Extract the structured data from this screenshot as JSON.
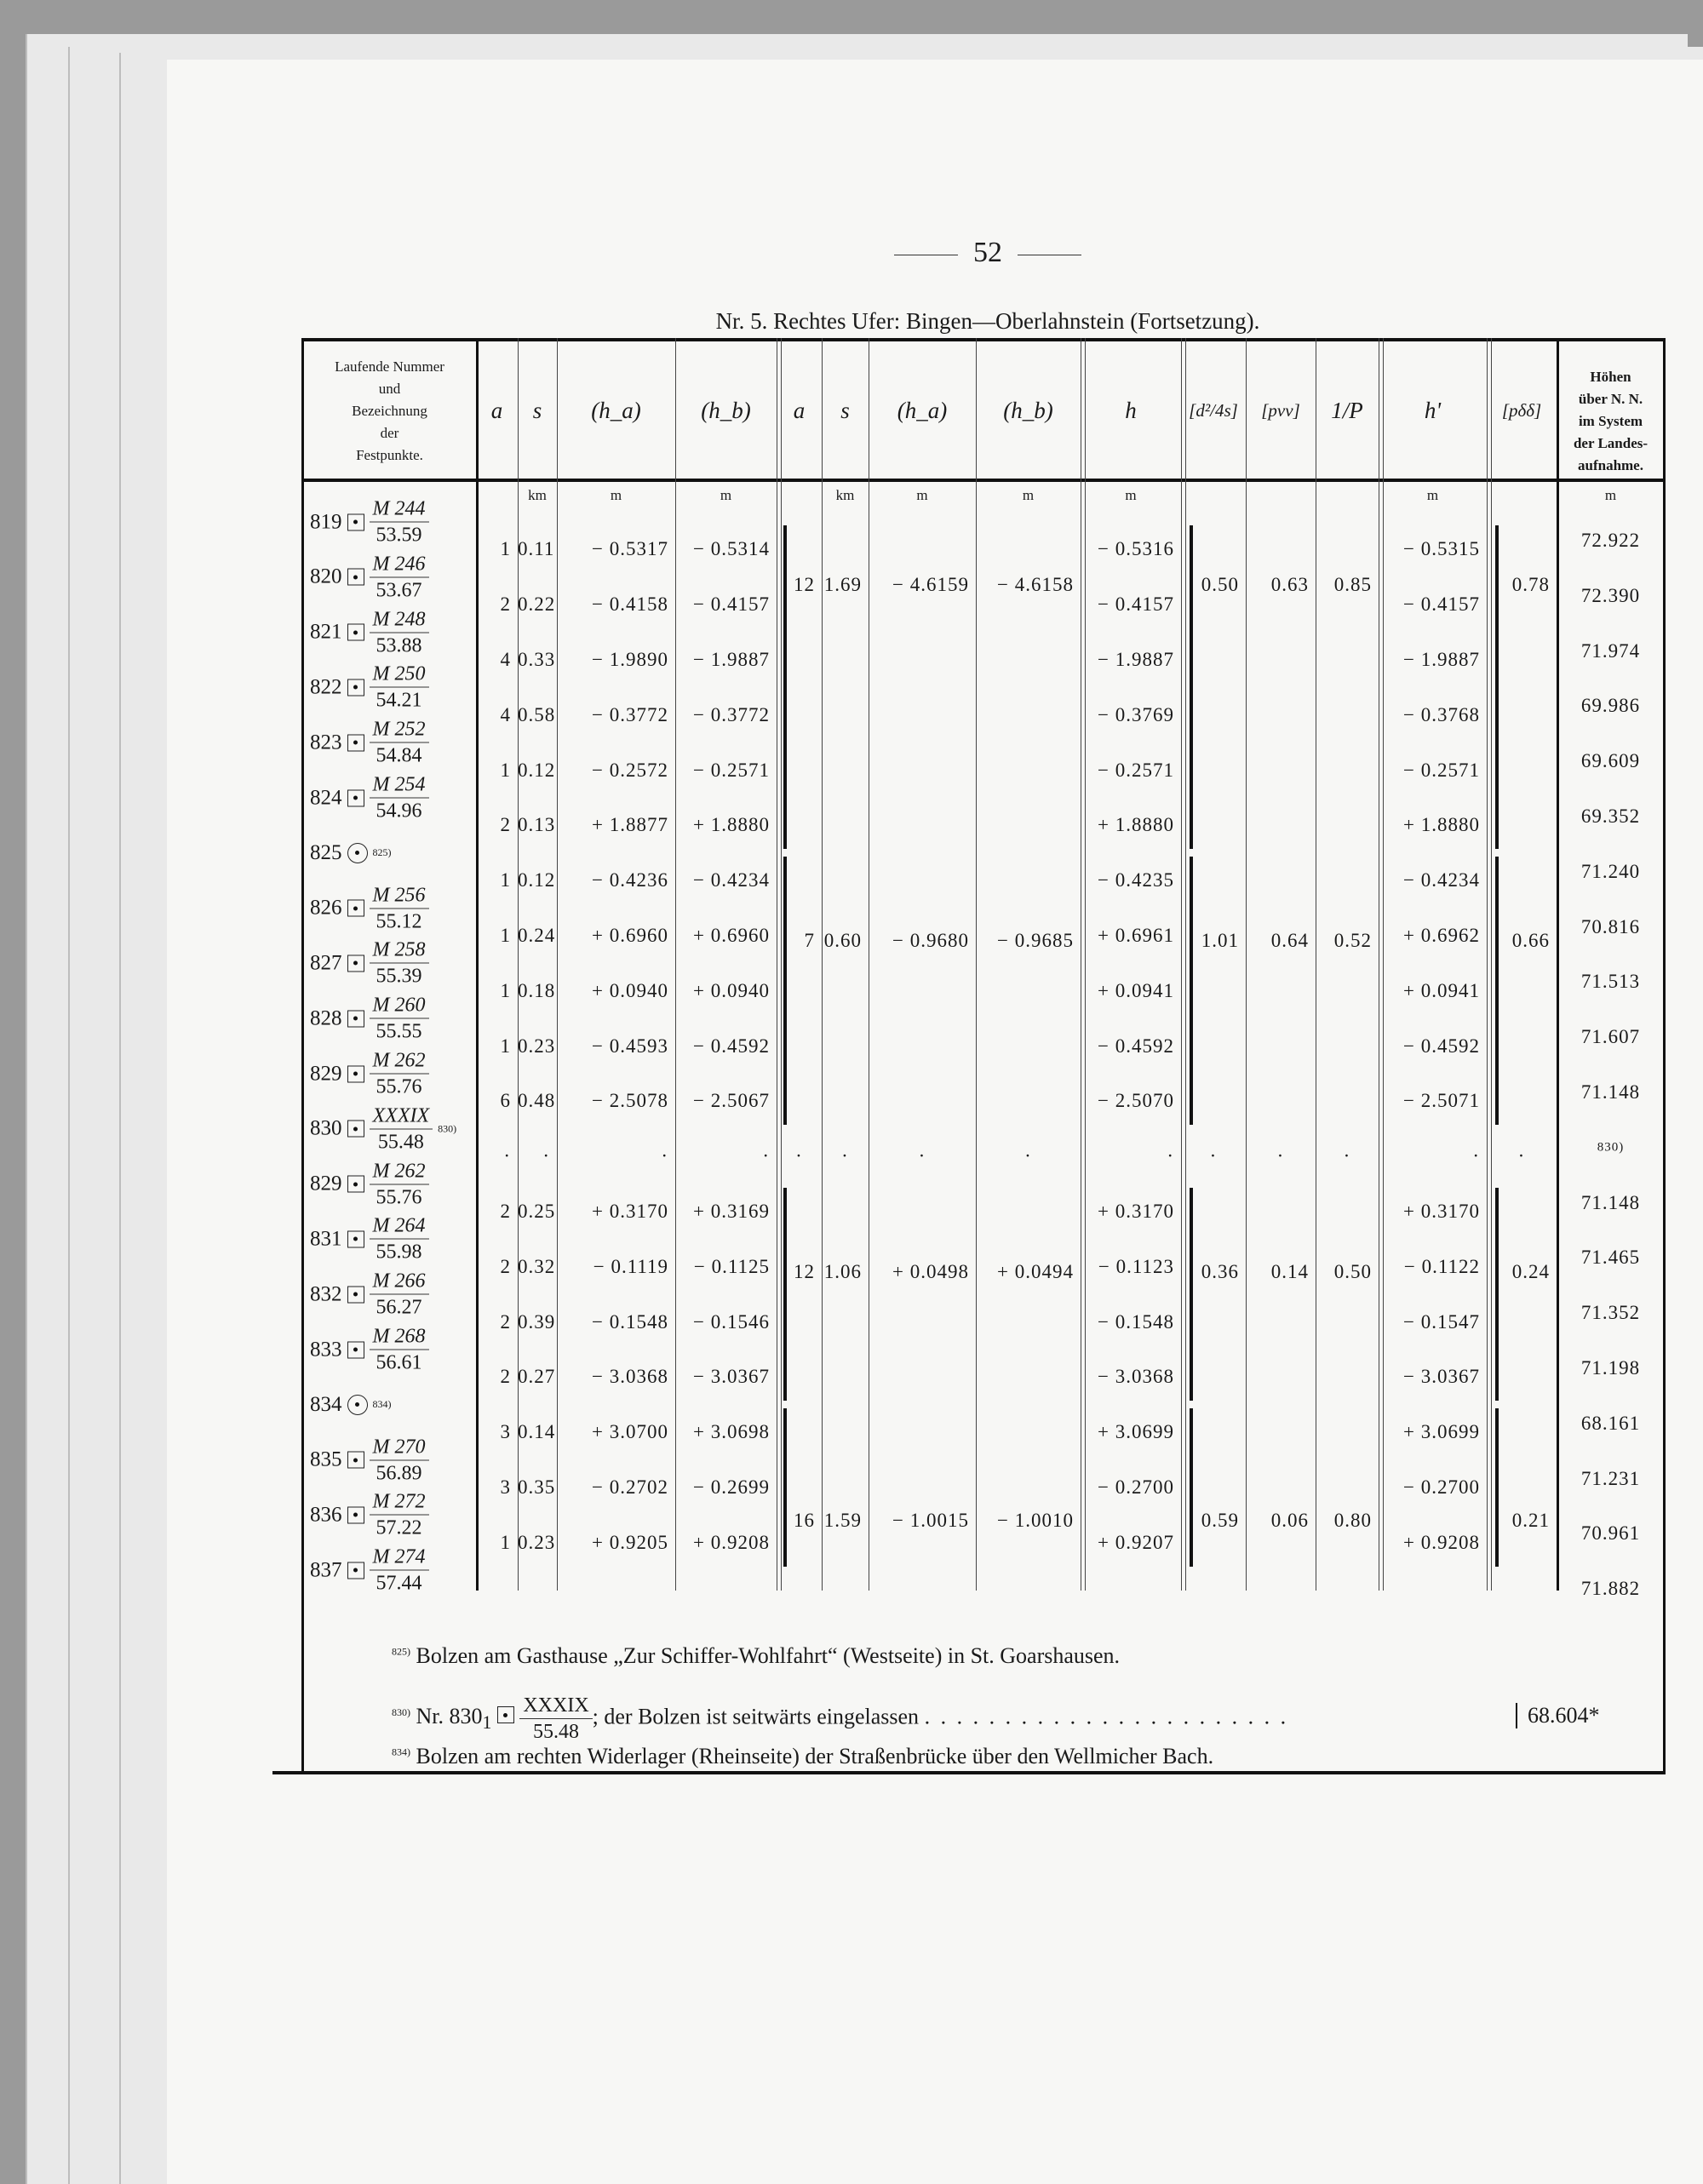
{
  "page_number": "52",
  "caption": "Nr. 5. Rechtes Ufer: Bingen—Oberlahnstein (Fortsetzung).",
  "headers": {
    "name": [
      "Laufende Nummer",
      "und",
      "Bezeichnung",
      "der",
      "Festpunkte."
    ],
    "cols": [
      "a",
      "s",
      "(h_a)",
      "(h_b)",
      "a",
      "s",
      "(h_a)",
      "(h_b)",
      "h",
      "[d²/4s]",
      "[pvv]",
      "1/P",
      "h'",
      "[pδδ]"
    ],
    "heights": [
      "Höhen",
      "über N. N.",
      "im System",
      "der Landes-",
      "aufnahme."
    ]
  },
  "units": {
    "km": "km",
    "m": "m"
  },
  "points": [
    {
      "no": "819",
      "mark": "box",
      "num": "M 244",
      "den": "53.59",
      "height": "72.922"
    },
    {
      "no": "820",
      "mark": "box",
      "num": "M 246",
      "den": "53.67",
      "height": "72.390"
    },
    {
      "no": "821",
      "mark": "box",
      "num": "M 248",
      "den": "53.88",
      "height": "71.974"
    },
    {
      "no": "822",
      "mark": "box",
      "num": "M 250",
      "den": "54.21",
      "height": "69.986"
    },
    {
      "no": "823",
      "mark": "box",
      "num": "M 252",
      "den": "54.84",
      "height": "69.609"
    },
    {
      "no": "824",
      "mark": "box",
      "num": "M 254",
      "den": "54.96",
      "height": "69.352"
    },
    {
      "no": "825",
      "mark": "circle",
      "note": "825)",
      "height": "71.240"
    },
    {
      "no": "826",
      "mark": "box",
      "num": "M 256",
      "den": "55.12",
      "height": "70.816"
    },
    {
      "no": "827",
      "mark": "box",
      "num": "M 258",
      "den": "55.39",
      "height": "71.513"
    },
    {
      "no": "828",
      "mark": "box",
      "num": "M 260",
      "den": "55.55",
      "height": "71.607"
    },
    {
      "no": "829",
      "mark": "box",
      "num": "M 262",
      "den": "55.76",
      "height": "71.148"
    },
    {
      "no": "830",
      "mark": "box",
      "num": "XXXIX",
      "den": "55.48",
      "note": "830)",
      "height": "830)"
    },
    {
      "no": "829",
      "mark": "box",
      "num": "M 262",
      "den": "55.76",
      "height": "71.148"
    },
    {
      "no": "831",
      "mark": "box",
      "num": "M 264",
      "den": "55.98",
      "height": "71.465"
    },
    {
      "no": "832",
      "mark": "box",
      "num": "M 266",
      "den": "56.27",
      "height": "71.352"
    },
    {
      "no": "833",
      "mark": "box",
      "num": "M 268",
      "den": "56.61",
      "height": "71.198"
    },
    {
      "no": "834",
      "mark": "circle",
      "note": "834)",
      "height": "68.161"
    },
    {
      "no": "835",
      "mark": "box",
      "num": "M 270",
      "den": "56.89",
      "height": "71.231"
    },
    {
      "no": "836",
      "mark": "box",
      "num": "M 272",
      "den": "57.22",
      "height": "70.961"
    },
    {
      "no": "837",
      "mark": "box",
      "num": "M 274",
      "den": "57.44",
      "height": "71.882"
    }
  ],
  "intervals": [
    [
      "1",
      "0.11",
      "− 0.5317",
      "− 0.5314",
      "− 0.5316",
      "− 0.5315"
    ],
    [
      "2",
      "0.22",
      "− 0.4158",
      "− 0.4157",
      "− 0.4157",
      "− 0.4157"
    ],
    [
      "4",
      "0.33",
      "− 1.9890",
      "− 1.9887",
      "− 1.9887",
      "− 1.9887"
    ],
    [
      "4",
      "0.58",
      "− 0.3772",
      "− 0.3772",
      "− 0.3769",
      "− 0.3768"
    ],
    [
      "1",
      "0.12",
      "− 0.2572",
      "− 0.2571",
      "− 0.2571",
      "− 0.2571"
    ],
    [
      "2",
      "0.13",
      "+ 1.8877",
      "+ 1.8880",
      "+ 1.8880",
      "+ 1.8880"
    ],
    [
      "1",
      "0.12",
      "− 0.4236",
      "− 0.4234",
      "− 0.4235",
      "− 0.4234"
    ],
    [
      "1",
      "0.24",
      "+ 0.6960",
      "+ 0.6960",
      "+ 0.6961",
      "+ 0.6962"
    ],
    [
      "1",
      "0.18",
      "+ 0.0940",
      "+ 0.0940",
      "+ 0.0941",
      "+ 0.0941"
    ],
    [
      "1",
      "0.23",
      "− 0.4593",
      "− 0.4592",
      "− 0.4592",
      "− 0.4592"
    ],
    [
      "6",
      "0.48",
      "− 2.5078",
      "− 2.5067",
      "− 2.5070",
      "− 2.5071"
    ],
    [
      "·",
      "·",
      "·",
      "·",
      "·",
      "·"
    ],
    [
      "2",
      "0.25",
      "+ 0.3170",
      "+ 0.3169",
      "+ 0.3170",
      "+ 0.3170"
    ],
    [
      "2",
      "0.32",
      "− 0.1119",
      "− 0.1125",
      "− 0.1123",
      "− 0.1122"
    ],
    [
      "2",
      "0.39",
      "− 0.1548",
      "− 0.1546",
      "− 0.1548",
      "− 0.1547"
    ],
    [
      "2",
      "0.27",
      "− 3.0368",
      "− 3.0367",
      "− 3.0368",
      "− 3.0367"
    ],
    [
      "3",
      "0.14",
      "+ 3.0700",
      "+ 3.0698",
      "+ 3.0699",
      "+ 3.0699"
    ],
    [
      "3",
      "0.35",
      "− 0.2702",
      "− 0.2699",
      "− 0.2700",
      "− 0.2700"
    ],
    [
      "1",
      "0.23",
      "+ 0.9205",
      "+ 0.9208",
      "+ 0.9207",
      "+ 0.9208"
    ]
  ],
  "groups": [
    {
      "rows": [
        0,
        5
      ],
      "a": "12",
      "s": "1.69",
      "ha": "− 4.6159",
      "hb": "− 4.6158",
      "d2": "0.50",
      "pvv": "0.63",
      "invP": "0.85",
      "pdd": "0.78"
    },
    {
      "rows": [
        6,
        10
      ],
      "a": "7",
      "s": "0.60",
      "ha": "− 0.9680",
      "hb": "− 0.9685",
      "d2": "1.01",
      "pvv": "0.64",
      "invP": "0.52",
      "pdd": "0.66"
    },
    {
      "rows": [
        12,
        15
      ],
      "a": "12",
      "s": "1.06",
      "ha": "+ 0.0498",
      "hb": "+ 0.0494",
      "d2": "0.36",
      "pvv": "0.14",
      "invP": "0.50",
      "pdd": "0.24"
    },
    {
      "rows": [
        16,
        18
      ],
      "a": "16",
      "s": "1.59",
      "ha": "− 1.0015",
      "hb": "− 1.0010",
      "d2": "0.59",
      "pvv": "0.06",
      "invP": "0.80",
      "pdd": "0.21"
    }
  ],
  "footnotes": [
    {
      "mark": "825)",
      "text": "Bolzen am Gasthause „Zur Schiffer-Wohlfahrt“ (Westseite) in St. Goarshausen."
    },
    {
      "mark": "830)",
      "prefix": "Nr. 830",
      "sub": "1",
      "num": "XXXIX",
      "den": "55.48",
      "text": "; der Bolzen ist seitwärts eingelassen",
      "leader": ". . . . . . . . . . . . . . . . . . . . . . .",
      "value": "68.604*"
    },
    {
      "mark": "834)",
      "text": "Bolzen am rechten Widerlager (Rheinseite) der Straßenbrücke über den Wellmicher Bach."
    }
  ]
}
